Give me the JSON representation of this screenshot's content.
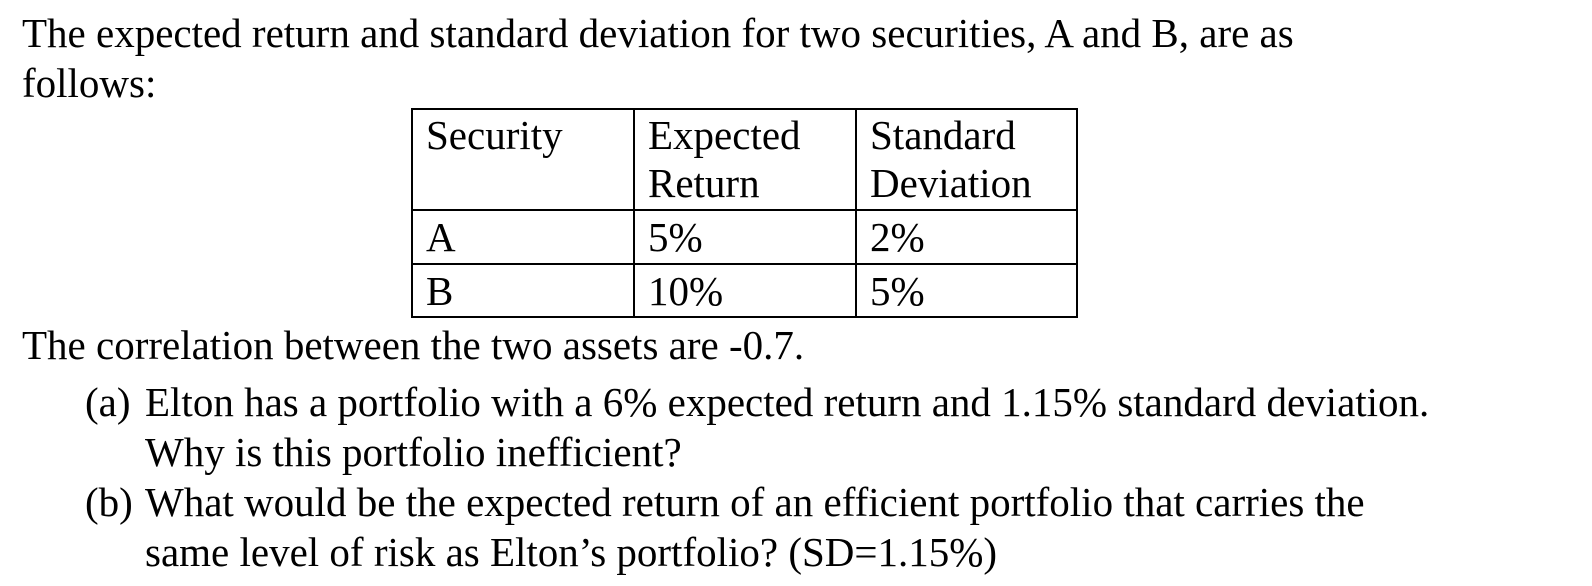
{
  "document": {
    "intro": {
      "line1": "The expected return and standard deviation for two securities, A and B, are as",
      "line2": "follows:"
    },
    "table": {
      "columns": [
        "Security",
        "Expected Return",
        "Standard Deviation"
      ],
      "rows": [
        {
          "security": "A",
          "expected_return": "5%",
          "standard_deviation": "2%"
        },
        {
          "security": "B",
          "expected_return": "10%",
          "standard_deviation": "5%"
        }
      ]
    },
    "correlation_note": "The correlation between the two assets are -0.7.",
    "questions": [
      {
        "label": "(a)",
        "line1": "Elton has a portfolio with a 6% expected return and 1.15% standard deviation.",
        "line2": "Why is this portfolio inefficient?"
      },
      {
        "label": "(b)",
        "line1": "What would be the expected return of an efficient portfolio that carries the",
        "line2": "same level of risk as Elton’s portfolio? (SD=1.15%)"
      }
    ]
  }
}
